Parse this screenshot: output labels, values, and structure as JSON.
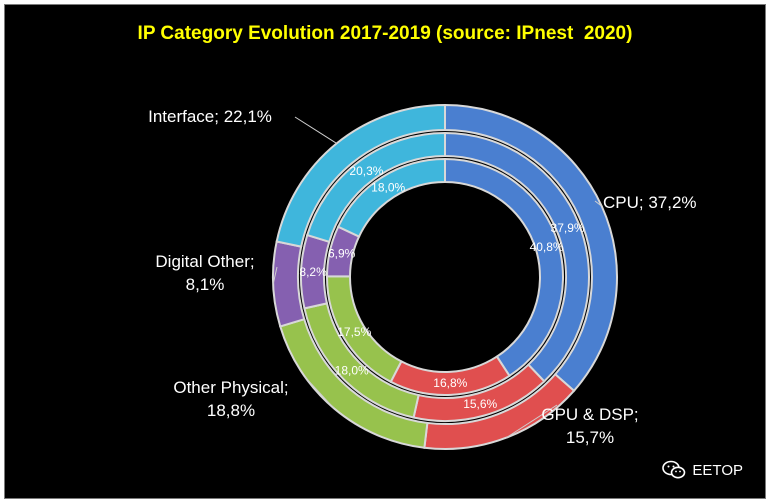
{
  "chart_data": {
    "type": "donut",
    "title": "IP Category Evolution 2017-2019 (source: IPnest  2020)",
    "rings": [
      "inner",
      "middle",
      "outer"
    ],
    "categories": [
      "CPU",
      "GPU & DSP",
      "Other Physical",
      "Digital Other",
      "Interface"
    ],
    "colors": [
      "#4a7fd0",
      "#e04f4f",
      "#97c24d",
      "#8560b0",
      "#3fb6dc"
    ],
    "series": [
      {
        "values": [
          40.8,
          16.8,
          17.5,
          6.9,
          18.0
        ],
        "labels": [
          "40,8%",
          "16,8%",
          "17,5%",
          "6,9%",
          "18,0%"
        ]
      },
      {
        "values": [
          37.9,
          15.6,
          18.0,
          8.2,
          20.3
        ],
        "labels": [
          "37,9%",
          "15,6%",
          "18,0%",
          "8,2%",
          "20,3%"
        ]
      },
      {
        "values": [
          37.2,
          15.7,
          18.8,
          8.1,
          22.1
        ],
        "labels": [
          "",
          "",
          "",
          "",
          ""
        ]
      }
    ],
    "outer_labels": [
      {
        "category": "CPU",
        "line1": "CPU; 37,2%",
        "line2": ""
      },
      {
        "category": "GPU & DSP",
        "line1": "GPU & DSP;",
        "line2": "15,7%"
      },
      {
        "category": "Other Physical",
        "line1": "Other Physical;",
        "line2": "18,8%"
      },
      {
        "category": "Digital Other",
        "line1": "Digital Other;",
        "line2": "8,1%"
      },
      {
        "category": "Interface",
        "line1": "Interface; 22,1%",
        "line2": ""
      }
    ]
  },
  "watermark": {
    "text": "EETOP",
    "icon": "wechat-icon"
  }
}
